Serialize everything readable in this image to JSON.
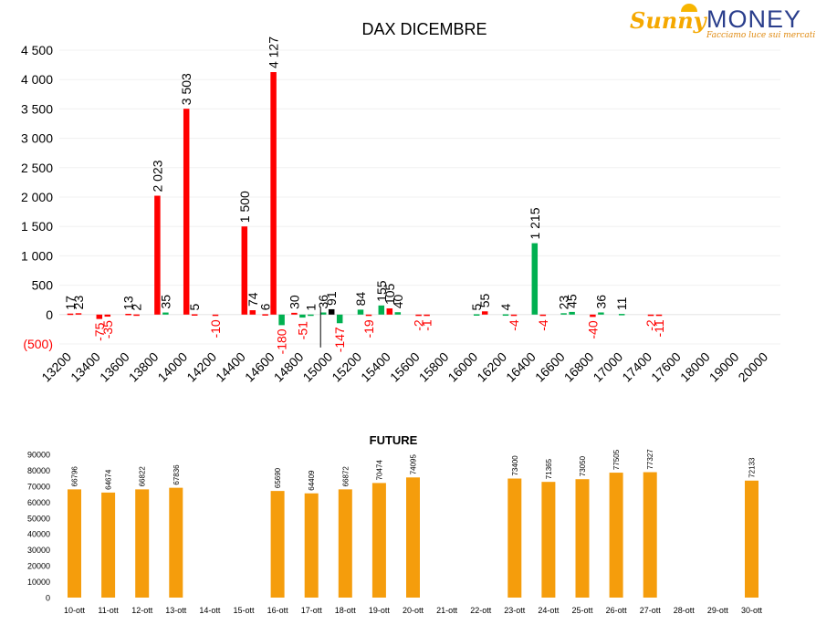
{
  "logo": {
    "sunny": "Sunny",
    "money": "MONEY",
    "tagline": "Facciamo luce sui mercati"
  },
  "chart_data": [
    {
      "type": "bar",
      "title": "DAX DICEMBRE",
      "y_ticks": [
        "4 500",
        "4 000",
        "3 500",
        "3 000",
        "2 500",
        "2 000",
        "1 500",
        "1 000",
        "500",
        "0",
        "(500)"
      ],
      "ylim": [
        -500,
        4500
      ],
      "categories": [
        "13200",
        "13400",
        "13600",
        "13800",
        "14000",
        "14200",
        "14400",
        "14600",
        "14800",
        "15000",
        "15200",
        "15400",
        "15600",
        "15800",
        "16000",
        "16200",
        "16400",
        "16600",
        "16800",
        "17000",
        "17400",
        "17600",
        "18000",
        "19000",
        "20000"
      ],
      "series_colors": {
        "red": "#ff0000",
        "green": "#00b050",
        "black": "#000000"
      },
      "bars": [
        {
          "slot": 0,
          "offset": 0,
          "value": 17,
          "label": "17",
          "color": "red"
        },
        {
          "slot": 0,
          "offset": 1,
          "value": 23,
          "label": "23",
          "color": "red"
        },
        {
          "slot": 1,
          "offset": 0,
          "value": -75,
          "label": "-75",
          "color": "red"
        },
        {
          "slot": 1,
          "offset": 1,
          "value": -35,
          "label": "-35",
          "color": "red"
        },
        {
          "slot": 2,
          "offset": 0,
          "value": 13,
          "label": "13",
          "color": "red"
        },
        {
          "slot": 2,
          "offset": 1,
          "value": 2,
          "label": "2",
          "color": "red"
        },
        {
          "slot": 3,
          "offset": 0,
          "value": 2023,
          "label": "2 023",
          "color": "red"
        },
        {
          "slot": 3,
          "offset": 1,
          "value": 35,
          "label": "35",
          "color": "green"
        },
        {
          "slot": 4,
          "offset": 0,
          "value": 3503,
          "label": "3 503",
          "color": "red"
        },
        {
          "slot": 4,
          "offset": 1,
          "value": 5,
          "label": "5",
          "color": "red"
        },
        {
          "slot": 5,
          "offset": 0,
          "value": -10,
          "label": "-10",
          "color": "red"
        },
        {
          "slot": 6,
          "offset": 0,
          "value": 1500,
          "label": "1 500",
          "color": "red"
        },
        {
          "slot": 6,
          "offset": 1,
          "value": 74,
          "label": "74",
          "color": "red"
        },
        {
          "slot": 7,
          "offset": -1,
          "value": 6,
          "label": "6",
          "color": "red"
        },
        {
          "slot": 7,
          "offset": 0,
          "value": 4127,
          "label": "4 127",
          "color": "red"
        },
        {
          "slot": 7,
          "offset": 1,
          "value": -180,
          "label": "-180",
          "color": "green"
        },
        {
          "slot": 8,
          "offset": -1,
          "value": 30,
          "label": "30",
          "color": "red"
        },
        {
          "slot": 8,
          "offset": 0,
          "value": -51,
          "label": "-51",
          "color": "green"
        },
        {
          "slot": 8,
          "offset": 1,
          "value": 1,
          "label": "1",
          "color": "green"
        },
        {
          "slot": 9,
          "offset": -1,
          "value": 36,
          "label": "36",
          "color": "green"
        },
        {
          "slot": 9,
          "offset": 0,
          "value": 91,
          "label": "91",
          "color": "black"
        },
        {
          "slot": 9,
          "offset": 1,
          "value": -147,
          "label": "-147",
          "color": "green"
        },
        {
          "slot": 10,
          "offset": 0,
          "value": 84,
          "label": "84",
          "color": "green"
        },
        {
          "slot": 10,
          "offset": 1,
          "value": -19,
          "label": "-19",
          "color": "red"
        },
        {
          "slot": 11,
          "offset": -1,
          "value": 155,
          "label": "155",
          "color": "green"
        },
        {
          "slot": 11,
          "offset": 0,
          "value": 105,
          "label": "105",
          "color": "red"
        },
        {
          "slot": 11,
          "offset": 1,
          "value": 40,
          "label": "40",
          "color": "green"
        },
        {
          "slot": 12,
          "offset": 0,
          "value": -2,
          "label": "-2",
          "color": "red"
        },
        {
          "slot": 12,
          "offset": 1,
          "value": -1,
          "label": "-1",
          "color": "red"
        },
        {
          "slot": 14,
          "offset": 0,
          "value": 5,
          "label": "5",
          "color": "green"
        },
        {
          "slot": 14,
          "offset": 1,
          "value": 55,
          "label": "55",
          "color": "red"
        },
        {
          "slot": 15,
          "offset": 0,
          "value": 4,
          "label": "4",
          "color": "green"
        },
        {
          "slot": 15,
          "offset": 1,
          "value": -4,
          "label": "-4",
          "color": "red"
        },
        {
          "slot": 16,
          "offset": 0,
          "value": 1215,
          "label": "1 215",
          "color": "green"
        },
        {
          "slot": 16,
          "offset": 1,
          "value": -4,
          "label": "-4",
          "color": "red"
        },
        {
          "slot": 17,
          "offset": 0,
          "value": 23,
          "label": "23",
          "color": "green"
        },
        {
          "slot": 17,
          "offset": 1,
          "value": 45,
          "label": "45",
          "color": "green"
        },
        {
          "slot": 18,
          "offset": 0,
          "value": -40,
          "label": "-40",
          "color": "red"
        },
        {
          "slot": 18,
          "offset": 1,
          "value": 36,
          "label": "36",
          "color": "green"
        },
        {
          "slot": 19,
          "offset": 0,
          "value": 11,
          "label": "11",
          "color": "green"
        },
        {
          "slot": 20,
          "offset": 0,
          "value": -2,
          "label": "-2",
          "color": "red"
        },
        {
          "slot": 20,
          "offset": 1,
          "value": -11,
          "label": "-11",
          "color": "red"
        }
      ],
      "label_color": {
        "positive": "#000000",
        "negative": "#ff0000"
      },
      "grid": true
    },
    {
      "type": "bar",
      "title": "FUTURE",
      "color": "#f59d0c",
      "ylim": [
        0,
        90000
      ],
      "y_ticks": [
        "90000",
        "80000",
        "70000",
        "60000",
        "50000",
        "40000",
        "30000",
        "20000",
        "10000",
        "0"
      ],
      "categories": [
        "10-ott",
        "11-ott",
        "12-ott",
        "13-ott",
        "14-ott",
        "15-ott",
        "16-ott",
        "17-ott",
        "18-ott",
        "19-ott",
        "20-ott",
        "21-ott",
        "22-ott",
        "23-ott",
        "24-ott",
        "25-ott",
        "26-ott",
        "27-ott",
        "28-ott",
        "29-ott",
        "30-ott"
      ],
      "values": [
        66796,
        64674,
        66822,
        67836,
        null,
        null,
        65690,
        64409,
        66872,
        70474,
        74095,
        null,
        null,
        73400,
        71365,
        73050,
        77505,
        77327,
        null,
        null,
        72133
      ],
      "bar_heights": [
        68000,
        66000,
        68000,
        69000,
        null,
        null,
        67000,
        65500,
        68000,
        72000,
        75500,
        null,
        null,
        74800,
        72700,
        74400,
        78500,
        78800,
        null,
        null,
        73500
      ],
      "grid": false
    }
  ]
}
